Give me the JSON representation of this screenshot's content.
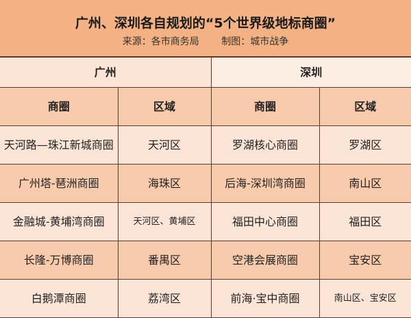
{
  "title": "广州、深圳各自规划的“5个世界级地标商圈”",
  "source": "来源：各市商务局",
  "made_by": "制图：城市战争",
  "cities": [
    "广州",
    "深圳"
  ],
  "headers": [
    "商圈",
    "区域",
    "商圈",
    "区域"
  ],
  "rows": [
    [
      "天河路—珠江新城商圈",
      "天河区",
      "罗湖核心商圈",
      "罗湖区"
    ],
    [
      "广州塔-琶洲商圈",
      "海珠区",
      "后海-深圳湾商圈",
      "南山区"
    ],
    [
      "金融城-黄埔湾商圈",
      "天河区、黄埔区",
      "福田中心商圈",
      "福田区"
    ],
    [
      "长隆-万博商圈",
      "番禺区",
      "空港会展商圈",
      "宝安区"
    ],
    [
      "白鹅潭商圈",
      "荔湾区",
      "前海·宝中商圈",
      "南山区、宝安区"
    ]
  ],
  "colors": {
    "title_bg": "#f4b183",
    "light_row": "#fce4d6",
    "dark_row": "#f8cbad",
    "border": "#5a3a2a"
  }
}
